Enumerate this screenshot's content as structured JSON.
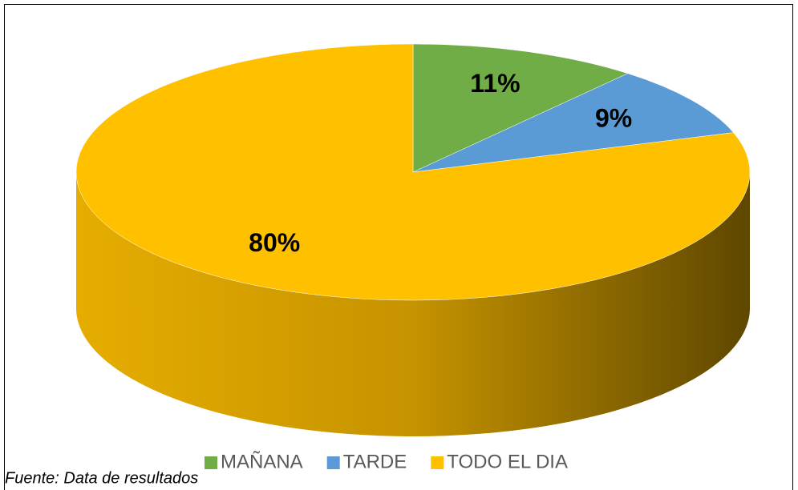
{
  "chart_data": {
    "type": "pie",
    "categories": [
      "MAÑANA",
      "TARDE",
      "TODO EL DIA"
    ],
    "values": [
      11,
      9,
      80
    ],
    "value_labels": [
      "11%",
      "9%",
      "80%"
    ],
    "colors": [
      "#70ad47",
      "#5b9bd5",
      "#ffc000"
    ],
    "legend": "bottom",
    "note": "Fuente: Data de resultados"
  }
}
